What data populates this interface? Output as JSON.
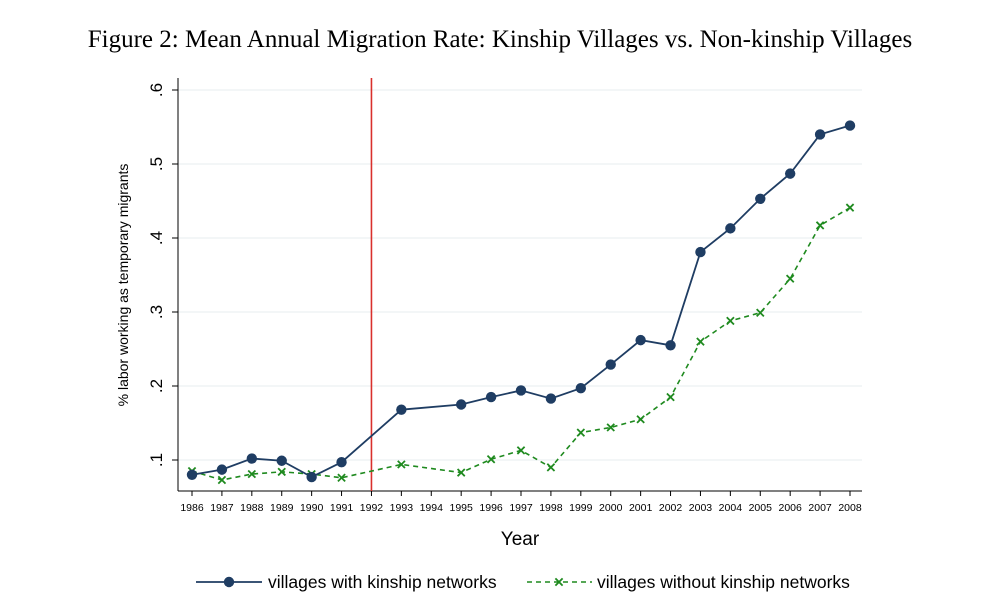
{
  "title": "Figure 2: Mean Annual Migration Rate: Kinship Villages vs. Non-kinship Villages",
  "chart_data": {
    "type": "line",
    "title": "Figure 2: Mean Annual Migration Rate: Kinship Villages vs. Non-kinship Villages",
    "xlabel": "Year",
    "ylabel": "% labor working as temporary migrants",
    "x": [
      1986,
      1987,
      1988,
      1989,
      1990,
      1991,
      1992,
      1993,
      1994,
      1995,
      1996,
      1997,
      1998,
      1999,
      2000,
      2001,
      2002,
      2003,
      2004,
      2005,
      2006,
      2007,
      2008
    ],
    "x_tick_labels": [
      "1986",
      "1987",
      "1988",
      "1989",
      "1990",
      "1991",
      "1992",
      "1993",
      "1994",
      "1995",
      "1996",
      "1997",
      "1998",
      "1999",
      "2000",
      "2001",
      "2002",
      "2003",
      "2004",
      "2005",
      "2006",
      "2007",
      "2008"
    ],
    "y_ticks": [
      0.1,
      0.2,
      0.3,
      0.4,
      0.5,
      0.6
    ],
    "y_tick_labels": [
      ".1",
      ".2",
      ".3",
      ".4",
      ".5",
      ".6"
    ],
    "ylim": [
      0.07,
      0.62
    ],
    "xlim": [
      1986,
      2008
    ],
    "grid": "horizontal",
    "vertical_line": {
      "x": 1992,
      "color": "#d9302c"
    },
    "legend_position": "bottom",
    "series": [
      {
        "name": "villages with kinship networks",
        "color": "#1f3d63",
        "marker": "circle",
        "line_style": "solid",
        "x": [
          1986,
          1987,
          1988,
          1989,
          1990,
          1991,
          1993,
          1995,
          1996,
          1997,
          1998,
          1999,
          2000,
          2001,
          2002,
          2003,
          2004,
          2005,
          2006,
          2007,
          2008
        ],
        "values": [
          0.08,
          0.087,
          0.102,
          0.099,
          0.077,
          0.097,
          0.168,
          0.175,
          0.185,
          0.194,
          0.183,
          0.197,
          0.229,
          0.262,
          0.255,
          0.381,
          0.413,
          0.453,
          0.487,
          0.54,
          0.552
        ]
      },
      {
        "name": "villages without kinship networks",
        "color": "#1f8a1f",
        "marker": "x",
        "line_style": "dashed",
        "x": [
          1986,
          1987,
          1988,
          1989,
          1990,
          1991,
          1993,
          1995,
          1996,
          1997,
          1998,
          1999,
          2000,
          2001,
          2002,
          2003,
          2004,
          2005,
          2006,
          2007,
          2008
        ],
        "values": [
          0.085,
          0.073,
          0.081,
          0.084,
          0.081,
          0.076,
          0.094,
          0.083,
          0.101,
          0.113,
          0.09,
          0.137,
          0.144,
          0.155,
          0.185,
          0.26,
          0.288,
          0.299,
          0.345,
          0.417,
          0.441
        ]
      }
    ]
  }
}
